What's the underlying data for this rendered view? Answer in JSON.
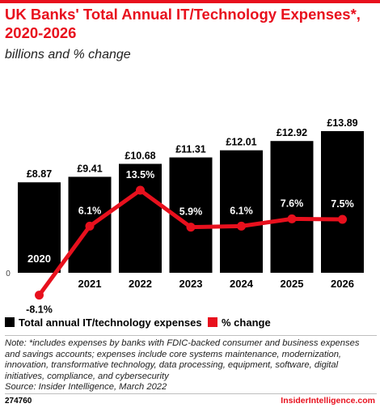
{
  "header": {
    "title": "UK Banks' Total Annual IT/Technology Expenses*, 2020-2026",
    "subtitle": "billions and % change"
  },
  "chart_data": {
    "type": "bar",
    "categories": [
      "2020",
      "2021",
      "2022",
      "2023",
      "2024",
      "2025",
      "2026"
    ],
    "series": [
      {
        "name": "Total annual IT/technology expenses",
        "type": "bar",
        "values": [
          8.87,
          9.41,
          10.68,
          11.31,
          12.01,
          12.92,
          13.89
        ],
        "labels": [
          "£8.87",
          "£9.41",
          "£10.68",
          "£11.31",
          "£12.01",
          "£12.92",
          "£13.89"
        ],
        "color": "#000000"
      },
      {
        "name": "% change",
        "type": "line",
        "values": [
          -8.1,
          6.1,
          13.5,
          5.9,
          6.1,
          7.6,
          7.5
        ],
        "labels": [
          "-8.1%",
          "6.1%",
          "13.5%",
          "5.9%",
          "6.1%",
          "7.6%",
          "7.5%"
        ],
        "color": "#e8101d"
      }
    ],
    "zero_label": "0",
    "ylim": [
      0,
      15
    ]
  },
  "legend": {
    "items": [
      {
        "label": "Total annual IT/technology expenses",
        "color": "#000000"
      },
      {
        "label": "% change",
        "color": "#e8101d"
      }
    ]
  },
  "footer": {
    "note": "Note: *includes expenses by banks with FDIC-backed consumer and business expenses and savings accounts; expenses include core systems maintenance, modernization, innovation, transformative technology, data processing, equipment, software, digital initiatives, compliance, and cybersecurity",
    "source": "Source: Insider Intelligence, March 2022",
    "chart_id": "274760",
    "brand": "InsiderIntelligence.com"
  }
}
